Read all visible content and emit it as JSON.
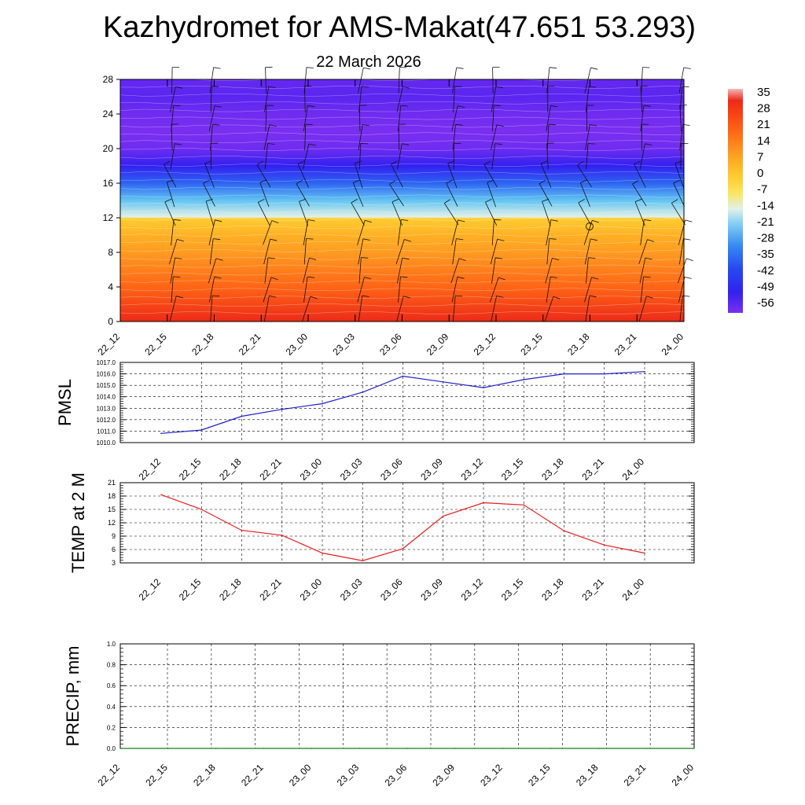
{
  "title": "Kazhydromet for AMS-Makat(47.651 53.293)",
  "subtitle": "22 March 2026",
  "chart_data": [
    {
      "type": "heatmap",
      "title": "Kazhydromet for AMS-Makat(47.651 53.293)",
      "subtitle": "22 March 2026",
      "x_ticks": [
        "22_12",
        "22_15",
        "22_18",
        "22_21",
        "23_00",
        "23_03",
        "23_06",
        "23_09",
        "23_12",
        "23_15",
        "23_18",
        "23_21",
        "24_00"
      ],
      "y_ticks": [
        "0",
        "4",
        "8",
        "12",
        "16",
        "20",
        "24",
        "28"
      ],
      "ylim": [
        0,
        28
      ],
      "colorbar_labels": [
        "35",
        "28",
        "21",
        "14",
        "7",
        "0",
        "-7",
        "-14",
        "-21",
        "-28",
        "-35",
        "-42",
        "-49",
        "-56"
      ],
      "colorbar_colors": [
        "#f4b8b8",
        "#e83030",
        "#f06a1a",
        "#ffc02a",
        "#fff7a8",
        "#3ab6ef",
        "#2a3aee",
        "#8a30ee"
      ],
      "profile_levels": [
        0,
        4,
        8,
        10,
        11.9,
        12.1,
        14,
        16,
        18,
        20,
        22,
        24,
        26,
        28
      ],
      "profile_values": [
        33,
        20,
        10,
        6,
        0,
        -14,
        -22,
        -35,
        -50,
        -57,
        -58,
        -57,
        -55,
        -56
      ],
      "overlay": "wind barbs"
    },
    {
      "type": "line",
      "ylabel": "PMSL",
      "x": [
        "22_12",
        "22_15",
        "22_18",
        "22_21",
        "23_00",
        "23_03",
        "23_06",
        "23_09",
        "23_12",
        "23_15",
        "23_18",
        "23_21",
        "24_00"
      ],
      "values": [
        1010.8,
        1011.1,
        1012.3,
        1012.9,
        1013.4,
        1014.4,
        1015.8,
        1015.3,
        1014.8,
        1015.5,
        1016.0,
        1016.0,
        1016.2
      ],
      "ylim": [
        1010.0,
        1017.0
      ],
      "y_ticks": [
        "1010.0",
        "1011.0",
        "1012.0",
        "1013.0",
        "1014.0",
        "1015.0",
        "1016.0",
        "1017.0"
      ],
      "color": "#1f1fcc",
      "grid": true
    },
    {
      "type": "line",
      "ylabel": "TEMP at 2 M",
      "x": [
        "22_12",
        "22_15",
        "22_18",
        "22_21",
        "23_00",
        "23_03",
        "23_06",
        "23_09",
        "23_12",
        "23_15",
        "23_18",
        "23_21",
        "24_00"
      ],
      "values": [
        18.3,
        15.0,
        10.3,
        9.2,
        5.2,
        3.5,
        6.2,
        13.5,
        16.5,
        16.0,
        10.2,
        7.0,
        5.2
      ],
      "ylim": [
        3,
        21
      ],
      "y_ticks": [
        "3",
        "6",
        "9",
        "12",
        "15",
        "18",
        "21"
      ],
      "color": "#e81c1c",
      "grid": true
    },
    {
      "type": "line",
      "ylabel": "PRECIP, mm",
      "x": [
        "22_12",
        "22_15",
        "22_18",
        "22_21",
        "23_00",
        "23_03",
        "23_06",
        "23_09",
        "23_12",
        "23_15",
        "23_18",
        "23_21",
        "24_00"
      ],
      "values": [
        0,
        0,
        0,
        0,
        0,
        0,
        0,
        0,
        0,
        0,
        0,
        0,
        0
      ],
      "ylim": [
        0.0,
        1.0
      ],
      "y_ticks": [
        "0.0",
        "0.2",
        "0.4",
        "0.6",
        "0.8",
        "1.0"
      ],
      "color": "#1a7a1a",
      "grid": true
    }
  ]
}
